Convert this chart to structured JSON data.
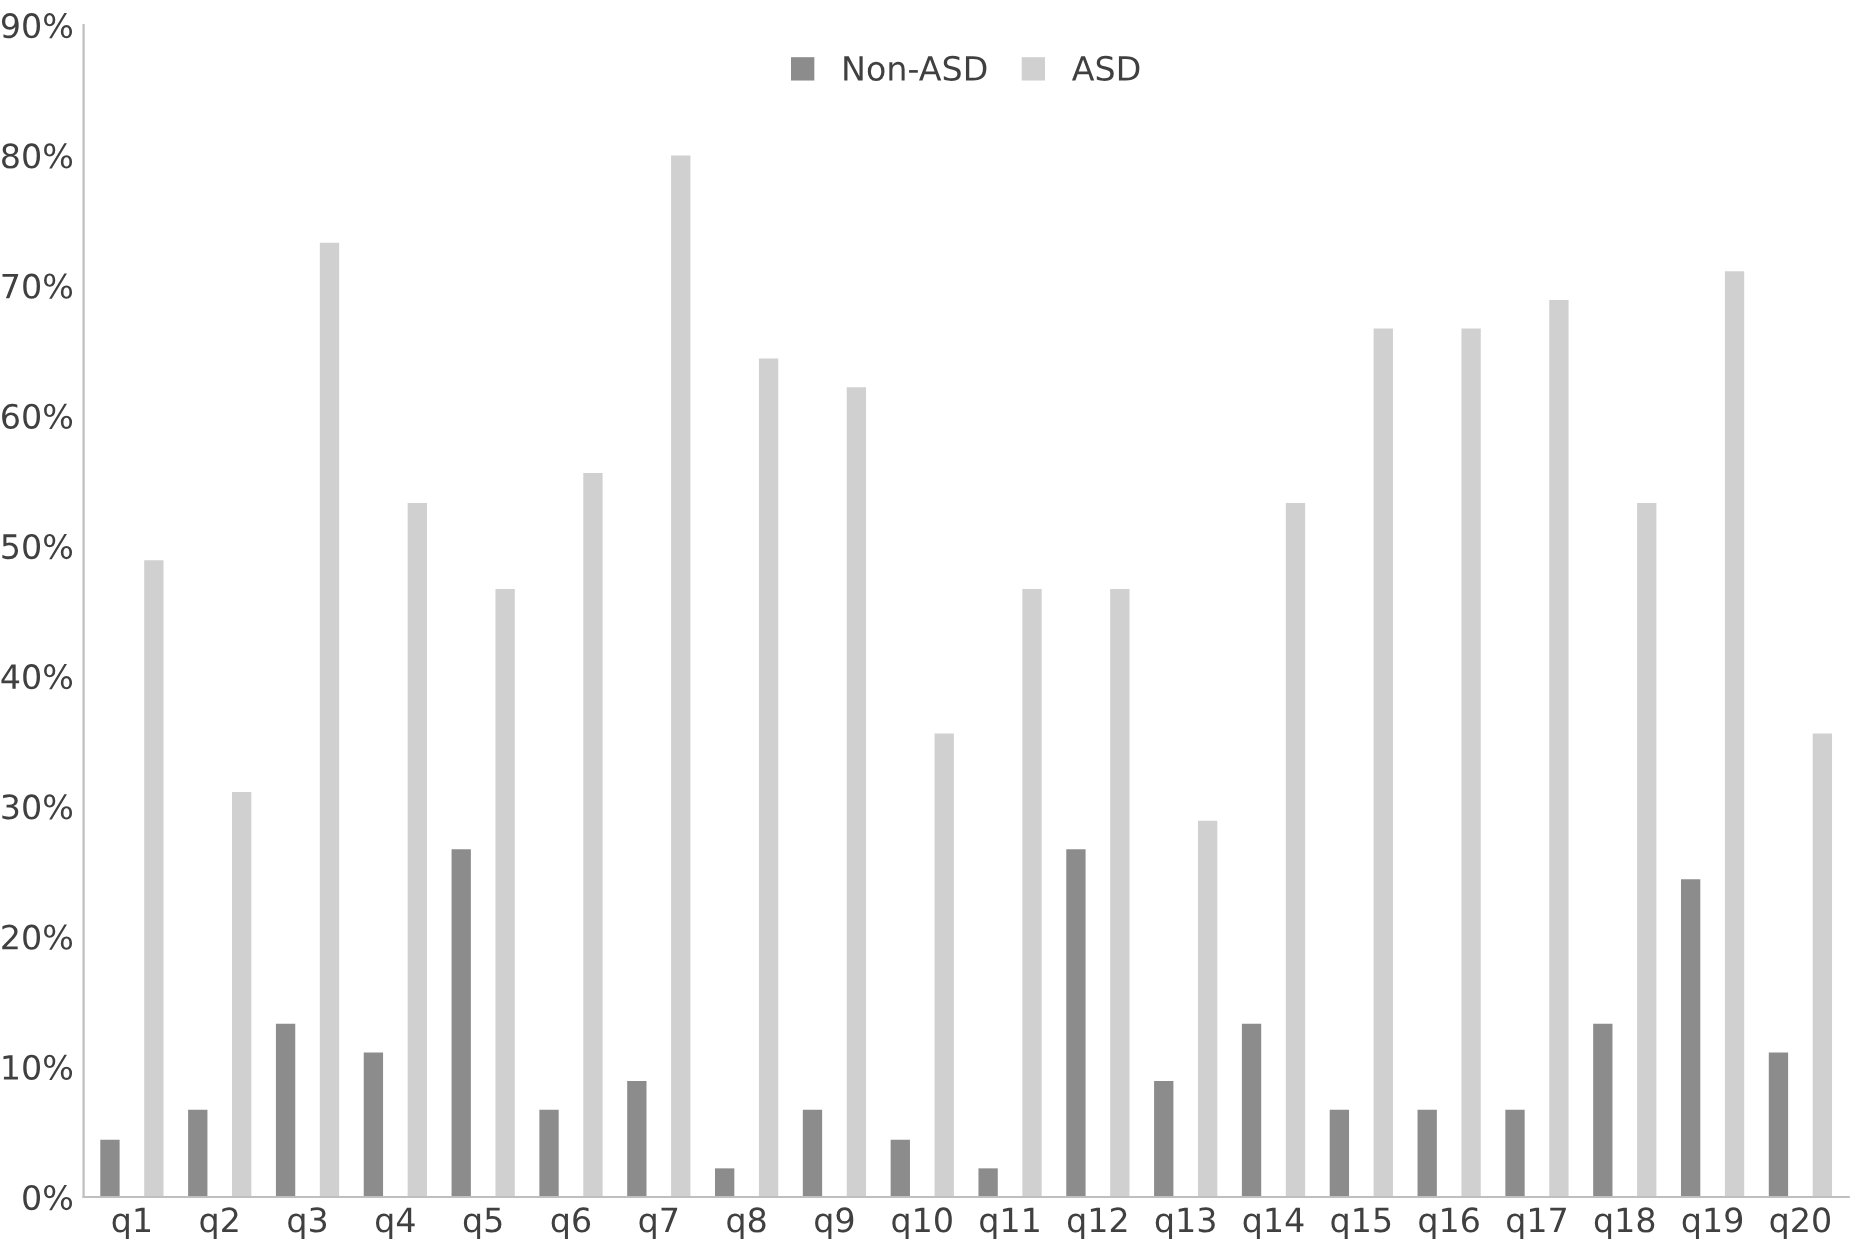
{
  "chart_data": {
    "type": "bar",
    "categories": [
      "q1",
      "q2",
      "q3",
      "q4",
      "q5",
      "q6",
      "q7",
      "q8",
      "q9",
      "q10",
      "q11",
      "q12",
      "q13",
      "q14",
      "q15",
      "q16",
      "q17",
      "q18",
      "q19",
      "q20"
    ],
    "series": [
      {
        "name": "Non-ASD",
        "color": "#8c8c8c",
        "values": [
          4.4,
          6.7,
          13.3,
          11.1,
          26.7,
          6.7,
          8.9,
          2.2,
          6.7,
          4.4,
          2.2,
          26.7,
          8.9,
          13.3,
          6.7,
          6.7,
          6.7,
          13.3,
          24.4,
          11.1
        ]
      },
      {
        "name": "ASD",
        "color": "#d0d0d0",
        "values": [
          48.9,
          31.1,
          73.3,
          53.3,
          46.7,
          55.6,
          80.0,
          64.4,
          62.2,
          35.6,
          46.7,
          46.7,
          28.9,
          53.3,
          66.7,
          66.7,
          68.9,
          53.3,
          71.1,
          35.6
        ]
      }
    ],
    "ylim": [
      0,
      90
    ],
    "yticks": [
      {
        "value": 0,
        "label": "0%"
      },
      {
        "value": 10,
        "label": "10%"
      },
      {
        "value": 20,
        "label": "20%"
      },
      {
        "value": 30,
        "label": "30%"
      },
      {
        "value": 40,
        "label": "40%"
      },
      {
        "value": 50,
        "label": "50%"
      },
      {
        "value": 60,
        "label": "60%"
      },
      {
        "value": 70,
        "label": "70%"
      },
      {
        "value": 80,
        "label": "80%"
      },
      {
        "value": 90,
        "label": "90%"
      }
    ],
    "grid": false,
    "legend": "top"
  }
}
